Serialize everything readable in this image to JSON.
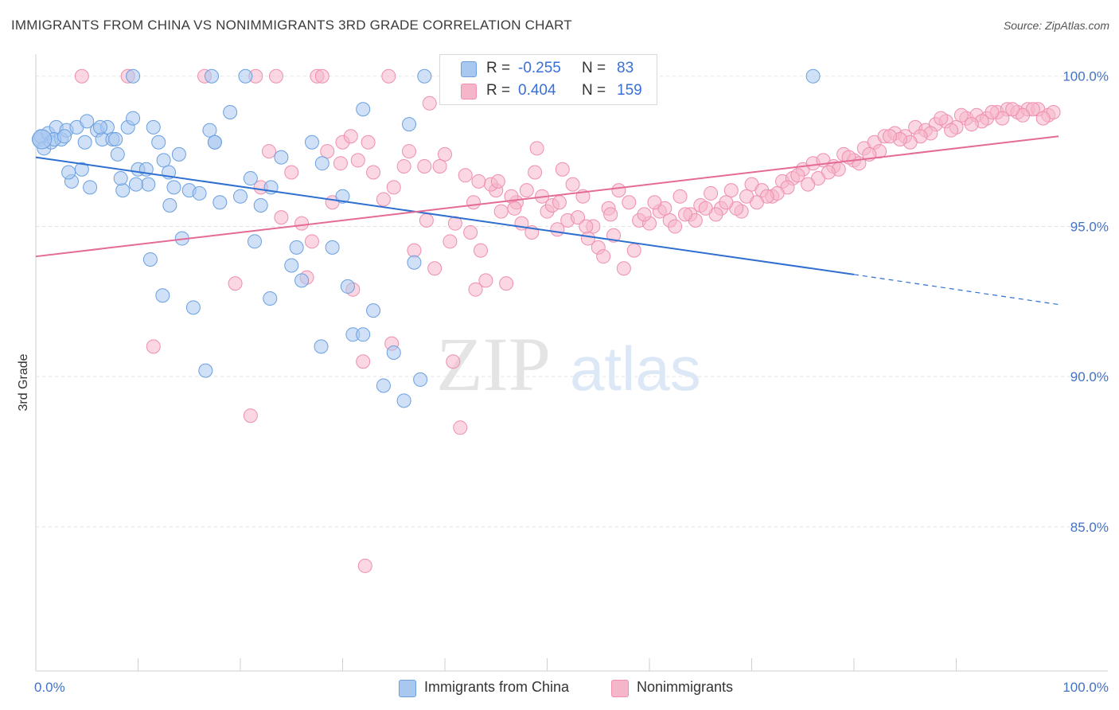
{
  "title": "IMMIGRANTS FROM CHINA VS NONIMMIGRANTS 3RD GRADE CORRELATION CHART",
  "source": "Source: ZipAtlas.com",
  "watermark": {
    "zip": "ZIP",
    "atlas": "atlas"
  },
  "legend_top": [
    {
      "r_label": "R =",
      "r_value": "-0.255",
      "n_label": "N =",
      "n_value": "83",
      "color": "#a9c8f0"
    },
    {
      "r_label": "R =",
      "r_value": "0.404",
      "n_label": "N =",
      "n_value": "159",
      "color": "#f6b6ca"
    }
  ],
  "legend_bottom": [
    {
      "label": "Immigrants from China",
      "color": "#a9c8f0"
    },
    {
      "label": "Nonimmigrants",
      "color": "#f6b6ca"
    }
  ],
  "chart_data": {
    "type": "scatter",
    "title": "IMMIGRANTS FROM CHINA VS NONIMMIGRANTS 3RD GRADE CORRELATION CHART",
    "xlabel": "",
    "ylabel": "3rd Grade",
    "xlim": [
      0,
      100
    ],
    "ylim": [
      80.2,
      101.0
    ],
    "x_tick_labels": [
      "0.0%",
      "100.0%"
    ],
    "y_ticks": [
      85,
      90,
      95,
      100
    ],
    "y_tick_labels": [
      "85.0%",
      "90.0%",
      "95.0%",
      "100.0%"
    ],
    "grid": "horizontal dashed",
    "legend": "top-center",
    "series": [
      {
        "name": "Immigrants from China",
        "color": "#6a9fe0",
        "fill": "#a9c8f0",
        "trend": {
          "x0": 0,
          "y0": 97.3,
          "x1": 80,
          "y1": 93.4,
          "dashed_to_x": 100,
          "dashed_to_y": 92.4,
          "color": "#2e6fd0"
        },
        "points": [
          [
            0.3,
            97.9
          ],
          [
            0.5,
            98.0
          ],
          [
            0.8,
            97.6
          ],
          [
            1.2,
            98.1
          ],
          [
            1.5,
            97.8
          ],
          [
            2.0,
            98.3
          ],
          [
            2.5,
            97.9
          ],
          [
            3.0,
            98.2
          ],
          [
            3.5,
            96.5
          ],
          [
            4.0,
            98.3
          ],
          [
            4.5,
            96.9
          ],
          [
            5.0,
            98.5
          ],
          [
            6.0,
            98.2
          ],
          [
            6.5,
            97.9
          ],
          [
            7.0,
            98.3
          ],
          [
            7.5,
            97.9
          ],
          [
            8.0,
            97.4
          ],
          [
            8.5,
            96.2
          ],
          [
            9.0,
            98.3
          ],
          [
            9.5,
            98.6
          ],
          [
            10.0,
            96.9
          ],
          [
            11.0,
            96.4
          ],
          [
            11.5,
            98.3
          ],
          [
            12.0,
            97.8
          ],
          [
            12.5,
            97.2
          ],
          [
            13.0,
            96.8
          ],
          [
            13.5,
            96.3
          ],
          [
            14.0,
            97.4
          ],
          [
            15.0,
            96.2
          ],
          [
            16.0,
            96.1
          ],
          [
            17.0,
            98.2
          ],
          [
            17.5,
            97.8
          ],
          [
            18.0,
            95.8
          ],
          [
            19.0,
            98.8
          ],
          [
            20.0,
            96.0
          ],
          [
            21.0,
            96.6
          ],
          [
            22.0,
            95.7
          ],
          [
            23.0,
            96.3
          ],
          [
            24.0,
            97.3
          ],
          [
            25.0,
            93.7
          ],
          [
            26.0,
            93.2
          ],
          [
            27.0,
            97.8
          ],
          [
            28.0,
            97.1
          ],
          [
            29.0,
            94.3
          ],
          [
            30.0,
            96.0
          ],
          [
            30.5,
            93.0
          ],
          [
            31.0,
            91.4
          ],
          [
            32.0,
            91.4
          ],
          [
            33.0,
            92.2
          ],
          [
            34.0,
            89.7
          ],
          [
            35.0,
            90.8
          ],
          [
            36.0,
            89.2
          ],
          [
            36.5,
            98.4
          ],
          [
            37.0,
            93.8
          ],
          [
            38.0,
            100.0
          ],
          [
            20.5,
            100.0
          ],
          [
            17.2,
            100.0
          ],
          [
            9.5,
            100.0
          ],
          [
            5.3,
            96.3
          ],
          [
            4.8,
            97.8
          ],
          [
            3.2,
            96.8
          ],
          [
            1.8,
            97.9
          ],
          [
            2.8,
            98.0
          ],
          [
            6.3,
            98.3
          ],
          [
            7.8,
            97.9
          ],
          [
            8.3,
            96.6
          ],
          [
            9.8,
            96.4
          ],
          [
            10.8,
            96.9
          ],
          [
            11.2,
            93.9
          ],
          [
            12.4,
            92.7
          ],
          [
            13.1,
            95.7
          ],
          [
            14.3,
            94.6
          ],
          [
            15.4,
            92.3
          ],
          [
            16.6,
            90.2
          ],
          [
            17.5,
            97.8
          ],
          [
            21.4,
            94.5
          ],
          [
            22.9,
            92.6
          ],
          [
            25.5,
            94.3
          ],
          [
            27.9,
            91.0
          ],
          [
            32.0,
            98.9
          ],
          [
            37.6,
            89.9
          ],
          [
            47.0,
            100.0
          ],
          [
            76.0,
            100.0
          ]
        ]
      },
      {
        "name": "Nonimmigrants",
        "color": "#ee8fae",
        "fill": "#f6b6ca",
        "trend": {
          "x0": 0,
          "y0": 94.0,
          "x1": 100,
          "y1": 98.0,
          "color": "#e46b96"
        },
        "points": [
          [
            4.5,
            100.0
          ],
          [
            9.0,
            100.0
          ],
          [
            16.5,
            100.0
          ],
          [
            21.5,
            100.0
          ],
          [
            23.5,
            100.0
          ],
          [
            27.5,
            100.0
          ],
          [
            28.0,
            100.0
          ],
          [
            34.5,
            100.0
          ],
          [
            38.5,
            99.1
          ],
          [
            40.0,
            97.4
          ],
          [
            11.5,
            91.0
          ],
          [
            19.5,
            93.1
          ],
          [
            21.0,
            88.7
          ],
          [
            22.0,
            96.3
          ],
          [
            24.0,
            95.3
          ],
          [
            25.0,
            96.8
          ],
          [
            26.0,
            95.1
          ],
          [
            27.0,
            94.5
          ],
          [
            28.5,
            97.5
          ],
          [
            29.0,
            95.8
          ],
          [
            30.0,
            97.8
          ],
          [
            31.0,
            92.9
          ],
          [
            32.0,
            90.5
          ],
          [
            33.0,
            96.8
          ],
          [
            34.0,
            95.9
          ],
          [
            35.0,
            96.3
          ],
          [
            36.0,
            97.0
          ],
          [
            37.0,
            94.2
          ],
          [
            38.0,
            97.0
          ],
          [
            39.0,
            93.6
          ],
          [
            40.5,
            94.5
          ],
          [
            41.0,
            95.1
          ],
          [
            42.0,
            96.7
          ],
          [
            43.0,
            92.9
          ],
          [
            44.0,
            93.2
          ],
          [
            45.0,
            96.2
          ],
          [
            46.0,
            93.1
          ],
          [
            47.0,
            95.8
          ],
          [
            48.0,
            96.2
          ],
          [
            49.0,
            97.6
          ],
          [
            50.0,
            95.5
          ],
          [
            51.0,
            94.9
          ],
          [
            52.0,
            95.2
          ],
          [
            53.0,
            95.3
          ],
          [
            54.0,
            94.6
          ],
          [
            55.0,
            94.3
          ],
          [
            56.0,
            95.6
          ],
          [
            57.0,
            96.2
          ],
          [
            58.0,
            95.8
          ],
          [
            59.0,
            95.2
          ],
          [
            60.0,
            95.1
          ],
          [
            61.0,
            95.5
          ],
          [
            62.0,
            95.2
          ],
          [
            63.0,
            96.0
          ],
          [
            64.0,
            95.4
          ],
          [
            65.0,
            95.7
          ],
          [
            66.0,
            96.1
          ],
          [
            67.0,
            95.6
          ],
          [
            68.0,
            96.2
          ],
          [
            69.0,
            95.5
          ],
          [
            70.0,
            96.4
          ],
          [
            71.0,
            96.2
          ],
          [
            72.0,
            96.0
          ],
          [
            73.0,
            96.5
          ],
          [
            74.0,
            96.6
          ],
          [
            75.0,
            96.9
          ],
          [
            76.0,
            97.1
          ],
          [
            77.0,
            97.2
          ],
          [
            78.0,
            97.0
          ],
          [
            79.0,
            97.4
          ],
          [
            80.0,
            97.2
          ],
          [
            81.0,
            97.6
          ],
          [
            82.0,
            97.8
          ],
          [
            83.0,
            98.0
          ],
          [
            84.0,
            98.1
          ],
          [
            85.0,
            98.0
          ],
          [
            86.0,
            98.3
          ],
          [
            87.0,
            98.2
          ],
          [
            88.0,
            98.4
          ],
          [
            89.0,
            98.5
          ],
          [
            90.0,
            98.3
          ],
          [
            91.0,
            98.6
          ],
          [
            92.0,
            98.7
          ],
          [
            93.0,
            98.6
          ],
          [
            94.0,
            98.8
          ],
          [
            95.0,
            98.9
          ],
          [
            96.0,
            98.8
          ],
          [
            97.0,
            98.9
          ],
          [
            98.0,
            98.9
          ],
          [
            99.0,
            98.7
          ],
          [
            99.5,
            98.8
          ],
          [
            98.5,
            98.6
          ],
          [
            97.5,
            98.9
          ],
          [
            96.5,
            98.7
          ],
          [
            95.5,
            98.9
          ],
          [
            94.5,
            98.6
          ],
          [
            93.5,
            98.8
          ],
          [
            92.5,
            98.5
          ],
          [
            91.5,
            98.4
          ],
          [
            90.5,
            98.7
          ],
          [
            89.5,
            98.2
          ],
          [
            88.5,
            98.6
          ],
          [
            87.5,
            98.1
          ],
          [
            86.5,
            98.0
          ],
          [
            85.5,
            97.8
          ],
          [
            84.5,
            97.9
          ],
          [
            83.5,
            98.0
          ],
          [
            82.5,
            97.5
          ],
          [
            81.5,
            97.4
          ],
          [
            80.5,
            97.1
          ],
          [
            79.5,
            97.3
          ],
          [
            78.5,
            96.9
          ],
          [
            77.5,
            96.8
          ],
          [
            76.5,
            96.6
          ],
          [
            75.5,
            96.4
          ],
          [
            74.5,
            96.7
          ],
          [
            73.5,
            96.3
          ],
          [
            72.5,
            96.1
          ],
          [
            71.5,
            96.0
          ],
          [
            70.5,
            95.8
          ],
          [
            69.5,
            96.0
          ],
          [
            68.5,
            95.6
          ],
          [
            67.5,
            95.8
          ],
          [
            66.5,
            95.4
          ],
          [
            65.5,
            95.6
          ],
          [
            64.5,
            95.2
          ],
          [
            63.5,
            95.4
          ],
          [
            62.5,
            95.0
          ],
          [
            61.5,
            95.6
          ],
          [
            60.5,
            95.8
          ],
          [
            59.5,
            95.4
          ],
          [
            58.5,
            94.2
          ],
          [
            57.5,
            93.6
          ],
          [
            56.5,
            94.7
          ],
          [
            55.5,
            94.0
          ],
          [
            54.5,
            95.0
          ],
          [
            53.5,
            96.0
          ],
          [
            52.5,
            96.4
          ],
          [
            51.5,
            96.9
          ],
          [
            50.5,
            95.7
          ],
          [
            49.5,
            96.0
          ],
          [
            48.5,
            94.8
          ],
          [
            47.5,
            95.1
          ],
          [
            46.5,
            96.0
          ],
          [
            45.5,
            95.5
          ],
          [
            44.5,
            96.4
          ],
          [
            43.5,
            94.2
          ],
          [
            42.5,
            94.8
          ],
          [
            41.5,
            88.3
          ],
          [
            40.8,
            90.5
          ],
          [
            36.5,
            97.5
          ],
          [
            34.8,
            91.1
          ],
          [
            32.5,
            97.8
          ],
          [
            31.5,
            97.2
          ],
          [
            30.8,
            98.0
          ],
          [
            29.8,
            97.1
          ],
          [
            26.5,
            93.3
          ],
          [
            22.8,
            97.5
          ],
          [
            38.2,
            95.2
          ],
          [
            39.5,
            97.0
          ],
          [
            43.3,
            96.5
          ],
          [
            46.8,
            95.6
          ],
          [
            32.2,
            83.7
          ],
          [
            42.8,
            95.8
          ],
          [
            45.2,
            96.5
          ],
          [
            48.8,
            96.8
          ],
          [
            51.2,
            95.8
          ],
          [
            53.8,
            95.0
          ],
          [
            56.2,
            95.4
          ]
        ]
      }
    ]
  }
}
